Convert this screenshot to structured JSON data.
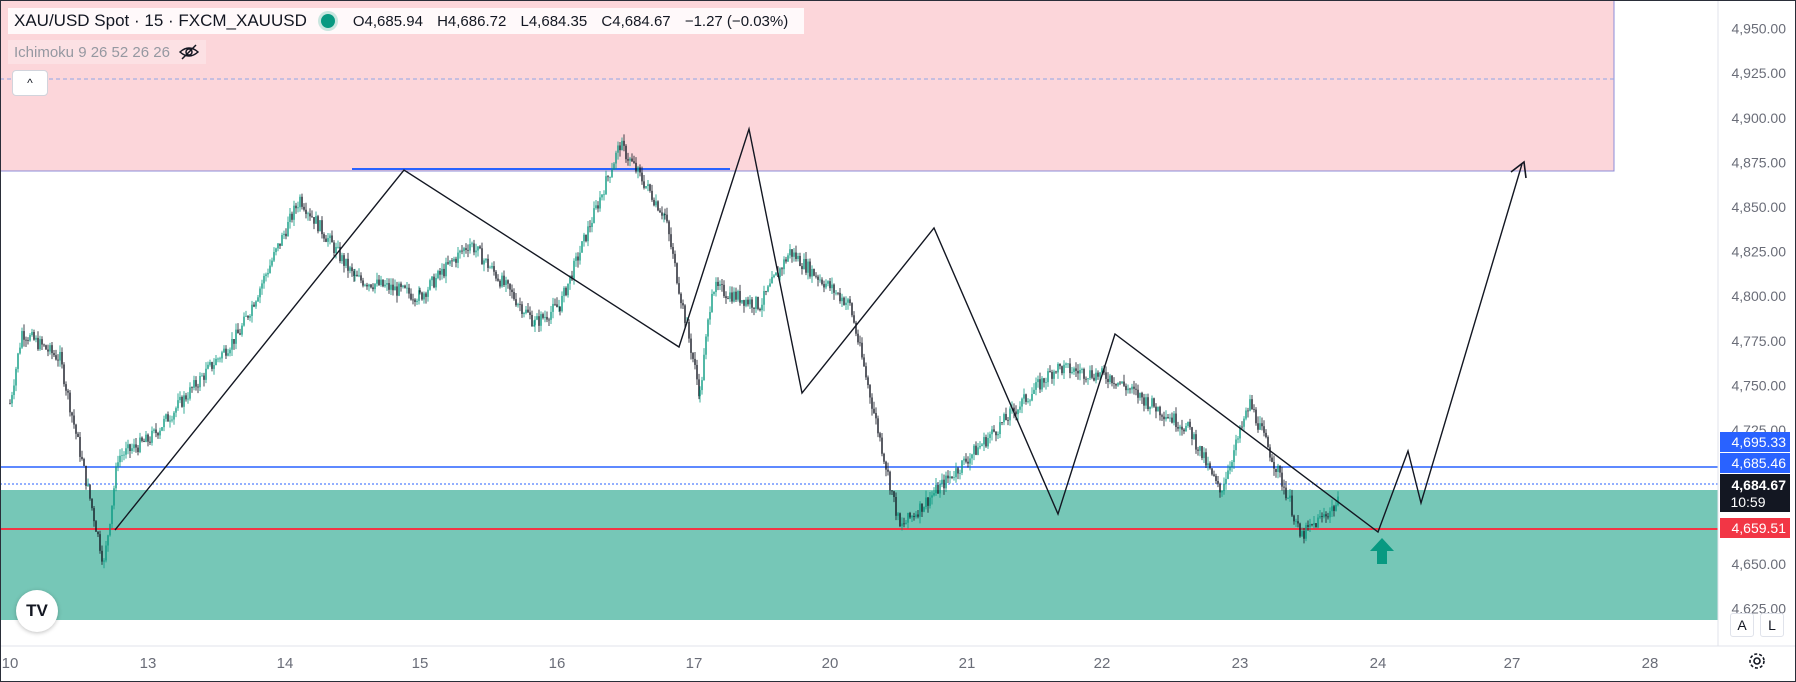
{
  "header": {
    "symbol": "XAU/USD Spot · 15 · FXCM_XAUUSD",
    "open": "O4,685.94",
    "high": "H4,686.72",
    "low": "L4,684.35",
    "close": "C4,684.67",
    "change": "−1.27 (−0.03%)"
  },
  "indicator": {
    "label": "Ichimoku 9 26 52 26 26",
    "visibility_icon": "eye-crossed-icon"
  },
  "controls": {
    "collapse_glyph": "^",
    "auto_scale": "A",
    "log_scale": "L",
    "logo": "TV",
    "settings_icon": "gear-icon"
  },
  "colors": {
    "supply_zone": "#fcd6da",
    "demand_zone": "#76c7b7",
    "blue_line": "#2962ff",
    "red_line": "#f23645",
    "up_candle": "#089981",
    "down_candle": "#131722",
    "current_price_bg": "#131722"
  },
  "price_labels": {
    "upper_blue": "4,695.33",
    "lower_blue": "4,685.46",
    "current": "4,684.67",
    "countdown": "10:59",
    "red": "4,659.51"
  },
  "chart_data": {
    "type": "candlestick",
    "y_axis": {
      "ticks": [
        "4,950.00",
        "4,925.00",
        "4,900.00",
        "4,875.00",
        "4,850.00",
        "4,825.00",
        "4,800.00",
        "4,775.00",
        "4,750.00",
        "4,725.00",
        "4,650.00",
        "4,625.00"
      ],
      "range": [
        4604,
        4966
      ]
    },
    "x_axis": {
      "ticks": [
        "10",
        "13",
        "14",
        "15",
        "16",
        "17",
        "20",
        "21",
        "22",
        "23",
        "24",
        "27",
        "28"
      ]
    },
    "zones": [
      {
        "name": "supply",
        "top": 4967,
        "bottom": 4865
      },
      {
        "name": "demand",
        "top": 4678,
        "bottom": 4611
      }
    ],
    "horizontal_lines": [
      {
        "price": 4867,
        "color": "blue",
        "from": "14",
        "to": "17"
      },
      {
        "price": 4685.46,
        "color": "blue"
      },
      {
        "price": 4677,
        "color": "dashed-blue"
      },
      {
        "price": 4659.51,
        "color": "red"
      },
      {
        "price": 4920,
        "color": "dotted-blue"
      }
    ],
    "zigzag": [
      {
        "x": "12",
        "price": 4658
      },
      {
        "x": "14",
        "price": 4867
      },
      {
        "x": "16",
        "price": 4763
      },
      {
        "x": "17",
        "price": 4891
      },
      {
        "x": "19",
        "price": 4736
      },
      {
        "x": "20",
        "price": 4835
      },
      {
        "x": "21",
        "price": 4666
      },
      {
        "x": "22",
        "price": 4771
      },
      {
        "x": "23",
        "price": 4658
      },
      {
        "x": "24",
        "price": 4700
      },
      {
        "x": "24",
        "price": 4679
      },
      {
        "x": "27",
        "price": 4870
      }
    ],
    "candles_close_path": [
      {
        "x": "10",
        "price": 4740
      },
      {
        "x": "10",
        "price": 4780
      },
      {
        "x": "12",
        "price": 4765
      },
      {
        "x": "12",
        "price": 4650
      },
      {
        "x": "13",
        "price": 4710
      },
      {
        "x": "13",
        "price": 4720
      },
      {
        "x": "14",
        "price": 4780
      },
      {
        "x": "14",
        "price": 4855
      },
      {
        "x": "15",
        "price": 4810
      },
      {
        "x": "15",
        "price": 4800
      },
      {
        "x": "16",
        "price": 4830
      },
      {
        "x": "16",
        "price": 4785
      },
      {
        "x": "17",
        "price": 4795
      },
      {
        "x": "17",
        "price": 4885
      },
      {
        "x": "20",
        "price": 4845
      },
      {
        "x": "20",
        "price": 4745
      },
      {
        "x": "20",
        "price": 4805
      },
      {
        "x": "20",
        "price": 4795
      },
      {
        "x": "21",
        "price": 4825
      },
      {
        "x": "21",
        "price": 4795
      },
      {
        "x": "21",
        "price": 4670
      },
      {
        "x": "22",
        "price": 4760
      },
      {
        "x": "22",
        "price": 4755
      },
      {
        "x": "23",
        "price": 4725
      },
      {
        "x": "23",
        "price": 4690
      },
      {
        "x": "23",
        "price": 4740
      },
      {
        "x": "23",
        "price": 4685
      },
      {
        "x": "24",
        "price": 4665
      },
      {
        "x": "24",
        "price": 4685
      }
    ]
  }
}
